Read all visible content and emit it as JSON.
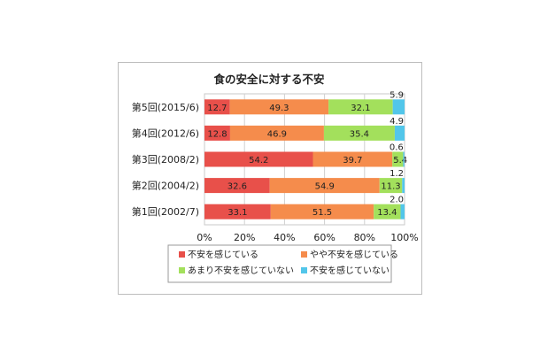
{
  "chart_data": {
    "type": "bar",
    "orientation": "horizontal",
    "stacked": "percent",
    "title": "食の安全に対する不安",
    "categories": [
      "第5回(2015/6)",
      "第4回(2012/6)",
      "第3回(2008/2)",
      "第2回(2004/2)",
      "第1回(2002/7)"
    ],
    "series": [
      {
        "name": "不安を感じている",
        "color": "#e8504a",
        "values": [
          12.7,
          12.8,
          54.2,
          32.6,
          33.1
        ]
      },
      {
        "name": "やや不安を感じている",
        "color": "#f58c4c",
        "values": [
          49.3,
          46.9,
          39.7,
          54.9,
          51.5
        ]
      },
      {
        "name": "あまり不安を感じていない",
        "color": "#a3e05c",
        "values": [
          32.1,
          35.4,
          5.4,
          11.3,
          13.4
        ]
      },
      {
        "name": "不安を感じていない",
        "color": "#52c6ea",
        "values": [
          5.9,
          4.9,
          0.6,
          1.2,
          2.0
        ]
      }
    ],
    "xlim": [
      0,
      100
    ],
    "x_ticks": [
      "0%",
      "20%",
      "40%",
      "60%",
      "80%",
      "100%"
    ],
    "legend_position": "bottom",
    "grid": true
  }
}
